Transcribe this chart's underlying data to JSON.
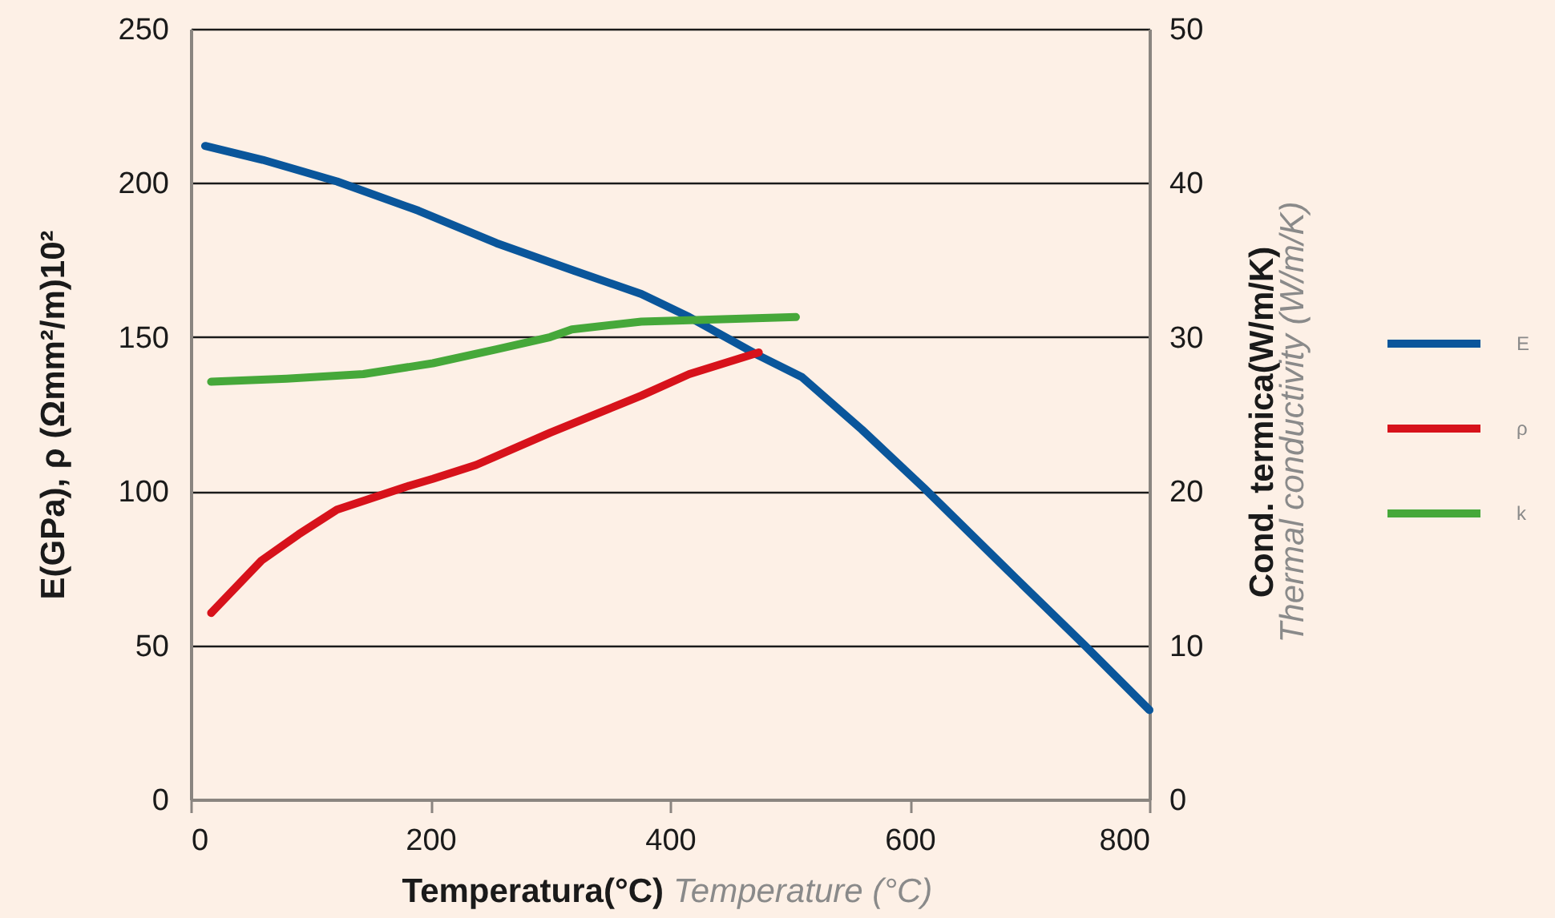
{
  "chart_data": {
    "type": "line",
    "xlabel": [
      "Temperatura(°C)",
      "Temperature (°C)"
    ],
    "ylabel": "E(GPa), ρ (Ωmm²/m)10²",
    "y2label": [
      "Cond. termica(W/m/K)",
      "Thermal conductivity (W/m/K)"
    ],
    "xlim": [
      0,
      800
    ],
    "xticks": [
      0,
      200,
      400,
      600,
      800
    ],
    "ylim": [
      0,
      250
    ],
    "yticks": [
      0,
      50,
      100,
      150,
      200,
      250
    ],
    "y2lim": [
      0,
      50
    ],
    "y2ticks": [
      0,
      10,
      20,
      30,
      40,
      50
    ],
    "grid": "y",
    "legend": "right",
    "line_style": "solid",
    "series": [
      {
        "name": "E",
        "color": "#0a569b",
        "x": [
          12,
          60,
          122,
          190,
          255,
          320,
          376,
          416,
          474,
          510,
          560,
          612,
          680,
          746,
          800
        ],
        "values": [
          212,
          207.5,
          200.5,
          191,
          180.5,
          171.5,
          164,
          156.5,
          144,
          137,
          120,
          101,
          75,
          50,
          29
        ]
      },
      {
        "name": "ρ",
        "color": "#d7121b",
        "x": [
          17,
          59,
          90,
          122,
          180,
          202,
          238,
          300,
          376,
          416,
          474
        ],
        "values": [
          60.5,
          77.5,
          86,
          94,
          101.5,
          104,
          108.5,
          119,
          131,
          138,
          145
        ]
      },
      {
        "name": "k",
        "color": "#46a83a",
        "axis": "y2",
        "x": [
          17,
          80,
          144,
          202,
          255,
          300,
          318,
          376,
          416,
          505
        ],
        "values": [
          27.1,
          27.3,
          27.6,
          28.3,
          29.2,
          30.0,
          30.5,
          31.0,
          31.1,
          31.3
        ]
      }
    ]
  }
}
